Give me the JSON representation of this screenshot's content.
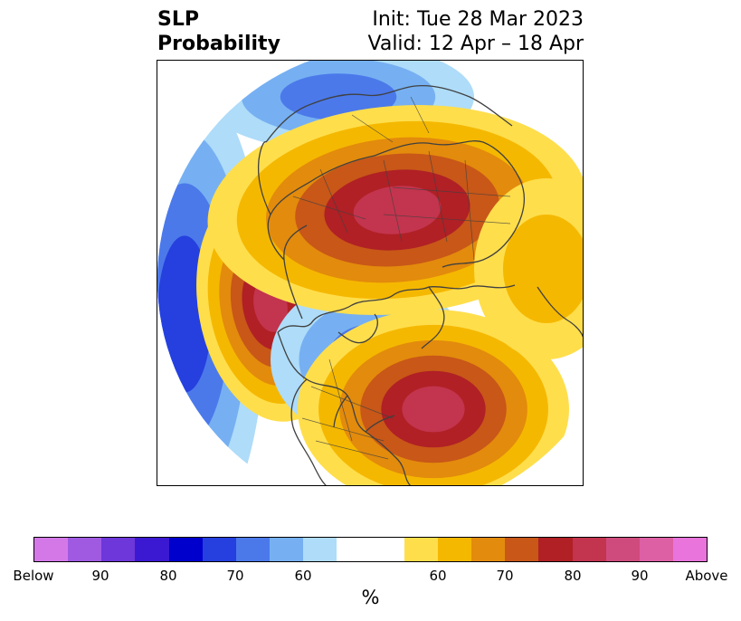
{
  "header": {
    "title_line1": "SLP",
    "title_line2": "Probability",
    "init": "Init: Tue 28 Mar 2023",
    "valid": "Valid: 12 Apr – 18 Apr"
  },
  "colors": {
    "below": [
      "#d478e8",
      "#a05ae2",
      "#6d37d9",
      "#3b19d2",
      "#0000cc",
      "#2540de",
      "#4b79ea",
      "#76b0f2",
      "#aedcf9"
    ],
    "neutral": "#ffffff",
    "above": [
      "#ffde4c",
      "#f5b800",
      "#e38b0c",
      "#c85718",
      "#b02025",
      "#c3344e",
      "#d04b7d",
      "#dd60a4",
      "#e874dc"
    ]
  },
  "colorbar": {
    "tick_labels": [
      "Below",
      "90",
      "80",
      "70",
      "60",
      "60",
      "70",
      "80",
      "90",
      "Above"
    ],
    "unit": "%"
  },
  "map": {
    "projection": "north-polar-stereographic",
    "anomalies": [
      {
        "region": "Pacific trough",
        "sign": "below",
        "peak_level": 4
      },
      {
        "region": "Alaska / NE Pacific ridge",
        "sign": "above",
        "peak_level": 6
      },
      {
        "region": "Canadian Arctic",
        "sign": "below",
        "peak_level": 3
      },
      {
        "region": "Eastern North America / W Atlantic",
        "sign": "above",
        "peak_level": 6
      },
      {
        "region": "Central Arctic Ocean",
        "sign": "below",
        "peak_level": 3
      },
      {
        "region": "Northern Eurasia / Siberia",
        "sign": "above",
        "peak_level": 6
      },
      {
        "region": "North Atlantic",
        "sign": "above",
        "peak_level": 2
      }
    ]
  }
}
